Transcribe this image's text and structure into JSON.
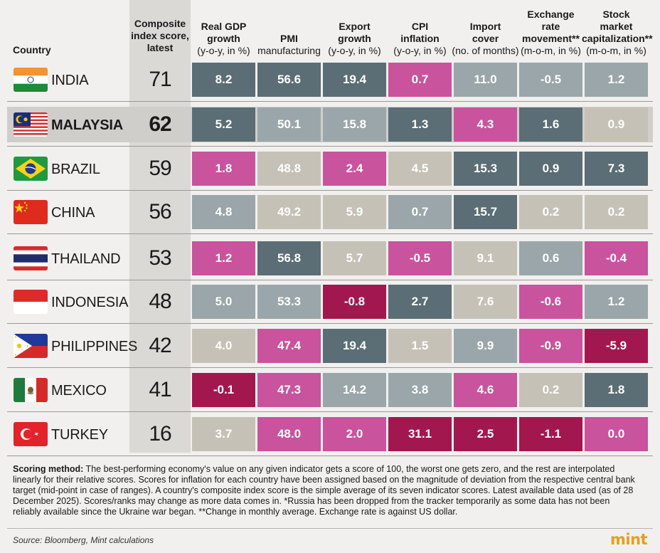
{
  "headers": {
    "country": "Country",
    "composite": [
      "Composite",
      "index score,",
      "latest"
    ],
    "columns": [
      {
        "title": [
          "Real GDP",
          "growth"
        ],
        "unit": "(y-o-y, in %)"
      },
      {
        "title": [
          "",
          "PMI"
        ],
        "unit": "manufacturing"
      },
      {
        "title": [
          "Export",
          "growth"
        ],
        "unit": "(y-o-y, in %)"
      },
      {
        "title": [
          "CPI",
          "inflation"
        ],
        "unit": "(y-o-y, in %)"
      },
      {
        "title": [
          "Import",
          "cover"
        ],
        "unit": "(no. of months)"
      },
      {
        "title": [
          "Exchange",
          "rate",
          "movement**"
        ],
        "unit": "(m-o-m, in %)"
      },
      {
        "title": [
          "Stock",
          "market",
          "capitalization**"
        ],
        "unit": "(m-o-m, in %)"
      }
    ]
  },
  "colors": {
    "dark_slate": "#5b6d75",
    "light_slate": "#9aa6aa",
    "beige": "#c6c1b6",
    "pink": "#c9539d",
    "maroon": "#a3174f"
  },
  "chart_data": {
    "type": "table",
    "rows": [
      {
        "country": "INDIA",
        "flag": "india-flag-icon",
        "score": 71,
        "values": [
          "8.2",
          "56.6",
          "19.4",
          "0.7",
          "11.0",
          "-0.5",
          "1.2"
        ],
        "tones": [
          "dark_slate",
          "dark_slate",
          "dark_slate",
          "pink",
          "light_slate",
          "light_slate",
          "light_slate"
        ]
      },
      {
        "country": "MALAYSIA",
        "flag": "malaysia-flag-icon",
        "score": 62,
        "values": [
          "5.2",
          "50.1",
          "15.8",
          "1.3",
          "4.3",
          "1.6",
          "0.9"
        ],
        "tones": [
          "dark_slate",
          "light_slate",
          "light_slate",
          "dark_slate",
          "pink",
          "dark_slate",
          "beige"
        ]
      },
      {
        "country": "BRAZIL",
        "flag": "brazil-flag-icon",
        "score": 59,
        "values": [
          "1.8",
          "48.8",
          "2.4",
          "4.5",
          "15.3",
          "0.9",
          "7.3"
        ],
        "tones": [
          "pink",
          "beige",
          "pink",
          "beige",
          "dark_slate",
          "dark_slate",
          "dark_slate"
        ]
      },
      {
        "country": "CHINA",
        "flag": "china-flag-icon",
        "score": 56,
        "values": [
          "4.8",
          "49.2",
          "5.9",
          "0.7",
          "15.7",
          "0.2",
          "0.2"
        ],
        "tones": [
          "light_slate",
          "beige",
          "beige",
          "light_slate",
          "dark_slate",
          "beige",
          "beige"
        ]
      },
      {
        "country": "THAILAND",
        "flag": "thailand-flag-icon",
        "score": 53,
        "values": [
          "1.2",
          "56.8",
          "5.7",
          "-0.5",
          "9.1",
          "0.6",
          "-0.4"
        ],
        "tones": [
          "pink",
          "dark_slate",
          "beige",
          "pink",
          "beige",
          "light_slate",
          "pink"
        ]
      },
      {
        "country": "INDONESIA",
        "flag": "indonesia-flag-icon",
        "score": 48,
        "values": [
          "5.0",
          "53.3",
          "-0.8",
          "2.7",
          "7.6",
          "-0.6",
          "1.2"
        ],
        "tones": [
          "light_slate",
          "light_slate",
          "maroon",
          "dark_slate",
          "beige",
          "pink",
          "light_slate"
        ]
      },
      {
        "country": "PHILIPPINES",
        "flag": "philippines-flag-icon",
        "score": 42,
        "values": [
          "4.0",
          "47.4",
          "19.4",
          "1.5",
          "9.9",
          "-0.9",
          "-5.9"
        ],
        "tones": [
          "beige",
          "pink",
          "dark_slate",
          "beige",
          "light_slate",
          "pink",
          "maroon"
        ]
      },
      {
        "country": "MEXICO",
        "flag": "mexico-flag-icon",
        "score": 41,
        "values": [
          "-0.1",
          "47.3",
          "14.2",
          "3.8",
          "4.6",
          "0.2",
          "1.8"
        ],
        "tones": [
          "maroon",
          "pink",
          "light_slate",
          "light_slate",
          "pink",
          "beige",
          "dark_slate"
        ]
      },
      {
        "country": "TURKEY",
        "flag": "turkey-flag-icon",
        "score": 16,
        "values": [
          "3.7",
          "48.0",
          "2.0",
          "31.1",
          "2.5",
          "-1.1",
          "0.0"
        ],
        "tones": [
          "beige",
          "pink",
          "pink",
          "maroon",
          "maroon",
          "maroon",
          "pink"
        ]
      }
    ]
  },
  "footer": {
    "label": "Scoring method:",
    "text": " The best-performing economy's value on any given indicator gets a score of 100, the worst one gets zero, and the rest are interpolated linearly for their relative scores. Scores for inflation for each country have been assigned based on the magnitude of deviation from the respective central bank target (mid-point in case of ranges). A country's composite index score is the simple average of its seven indicator scores. Latest available data used (as of 28 December 2025). Scores/ranks may change as more data comes in. *Russia has been dropped from the tracker temporarily as some data has not been reliably available since the Ukraine war began. **Change in monthly average. Exchange rate is against US dollar.",
    "source": "Source: Bloomberg, Mint calculations",
    "logo": "mint"
  }
}
